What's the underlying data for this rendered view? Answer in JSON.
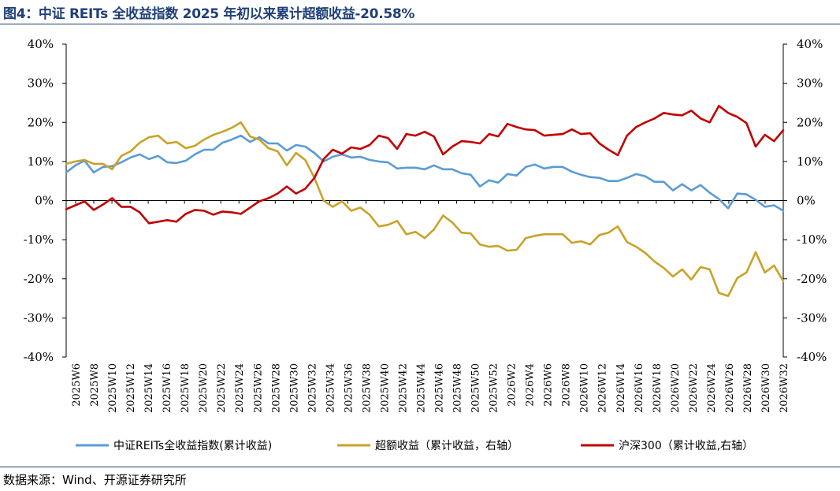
{
  "header": {
    "title": "图4：中证 REITs 全收益指数 2025 年初以来累计超额收益-20.58%"
  },
  "footer": {
    "source": "数据来源：Wind、开源证券研究所"
  },
  "colors": {
    "reits": "#5b9bd5",
    "excess": "#c9a227",
    "hs300": "#c00000",
    "title": "#1f3f78"
  },
  "chart_data": {
    "type": "line",
    "title": "",
    "y_left": {
      "ticks": [
        "40%",
        "30%",
        "20%",
        "10%",
        "0%",
        "-10%",
        "-20%",
        "-30%",
        "-40%"
      ],
      "ylim": [
        -40,
        40
      ]
    },
    "y_right": {
      "ticks": [
        "40%",
        "30%",
        "20%",
        "10%",
        "0%",
        "-10%",
        "-20%",
        "-30%",
        "-40%"
      ],
      "ylim": [
        -40,
        40
      ]
    },
    "grid": false,
    "legend_position": "bottom",
    "x_labels": [
      "2025W6",
      "2025W8",
      "2025W10",
      "2025W12",
      "2025W14",
      "2025W16",
      "2025W18",
      "2025W20",
      "2025W22",
      "2025W24",
      "2025W26",
      "2025W28",
      "2025W30",
      "2025W32",
      "2025W34",
      "2025W36",
      "2025W38",
      "2025W40",
      "2025W42",
      "2025W44",
      "2025W46",
      "2025W48",
      "2025W50",
      "2025W52",
      "2026W2",
      "2026W4",
      "2026W6",
      "2026W8",
      "2026W10",
      "2026W12",
      "2026W14",
      "2026W16",
      "2026W18",
      "2026W20",
      "2026W22",
      "2026W24",
      "2026W26",
      "2026W28",
      "2026W30",
      "2026W32"
    ],
    "series": [
      {
        "name": "中证REITs全收益指数(累计收益)",
        "axis": "left",
        "color": "#5b9bd5",
        "values": [
          7.2,
          9.0,
          10.2,
          7.2,
          8.6,
          8.8,
          9.8,
          11.0,
          11.8,
          10.6,
          11.4,
          9.8,
          9.6,
          10.2,
          11.8,
          13.0,
          13.0,
          14.8,
          15.6,
          16.6,
          15.0,
          16.2,
          14.6,
          14.6,
          12.8,
          14.2,
          13.8,
          12.2,
          10.0,
          11.2,
          11.8,
          11.0,
          11.2,
          10.4,
          10.0,
          9.8,
          8.2,
          8.4,
          8.4,
          8.0,
          9.0,
          8.0,
          8.0,
          7.0,
          6.6,
          3.6,
          5.2,
          4.6,
          6.8,
          6.4,
          8.6,
          9.2,
          8.2,
          8.6,
          8.6,
          7.4,
          6.6,
          6.0,
          5.8,
          5.0,
          5.0,
          5.8,
          6.8,
          6.2,
          4.8,
          4.8,
          2.6,
          4.2,
          2.6,
          4.0,
          2.0,
          0.4,
          -2.0,
          1.8,
          1.6,
          0.2,
          -1.6,
          -1.2,
          -2.6
        ]
      },
      {
        "name": "超额收益（累计收益，右轴）",
        "axis": "right",
        "color": "#c9a227",
        "values": [
          9.4,
          10.0,
          10.4,
          9.4,
          9.4,
          8.0,
          11.4,
          12.6,
          14.8,
          16.2,
          16.6,
          14.6,
          15.0,
          13.4,
          14.0,
          15.6,
          16.8,
          17.6,
          18.6,
          20.0,
          16.4,
          15.6,
          13.4,
          12.6,
          9.0,
          12.2,
          10.4,
          5.8,
          0.0,
          -1.6,
          -0.2,
          -2.6,
          -1.8,
          -3.6,
          -6.6,
          -6.2,
          -5.2,
          -8.6,
          -8.0,
          -9.6,
          -7.4,
          -3.8,
          -5.6,
          -8.2,
          -8.4,
          -11.2,
          -11.8,
          -11.6,
          -12.8,
          -12.6,
          -9.6,
          -9.0,
          -8.6,
          -8.6,
          -8.6,
          -10.8,
          -10.4,
          -11.2,
          -8.8,
          -8.2,
          -6.6,
          -10.6,
          -11.8,
          -13.4,
          -15.6,
          -17.2,
          -19.4,
          -17.6,
          -20.2,
          -17.0,
          -17.6,
          -23.6,
          -24.4,
          -19.8,
          -18.4,
          -13.2,
          -18.4,
          -16.6,
          -20.6
        ]
      },
      {
        "name": "沪深300（累计收益,右轴）",
        "axis": "right",
        "color": "#c00000",
        "values": [
          -2.2,
          -1.2,
          -0.2,
          -2.4,
          -1.0,
          0.6,
          -1.6,
          -1.6,
          -3.0,
          -5.8,
          -5.4,
          -5.0,
          -5.4,
          -3.4,
          -2.4,
          -2.6,
          -3.6,
          -2.8,
          -3.0,
          -3.4,
          -1.8,
          -0.2,
          0.6,
          1.8,
          3.6,
          1.8,
          3.0,
          5.8,
          10.6,
          13.0,
          12.0,
          13.6,
          13.2,
          14.2,
          16.6,
          16.0,
          13.2,
          17.0,
          16.6,
          17.6,
          16.4,
          11.8,
          13.8,
          15.2,
          15.0,
          14.6,
          17.0,
          16.4,
          19.6,
          18.8,
          18.2,
          18.0,
          16.6,
          16.8,
          17.0,
          18.2,
          17.0,
          17.2,
          14.6,
          13.0,
          11.6,
          16.6,
          18.8,
          20.0,
          21.0,
          22.4,
          22.0,
          21.8,
          23.0,
          21.0,
          20.0,
          24.2,
          22.4,
          21.4,
          19.8,
          13.8,
          16.8,
          15.2,
          18.0
        ]
      }
    ]
  }
}
